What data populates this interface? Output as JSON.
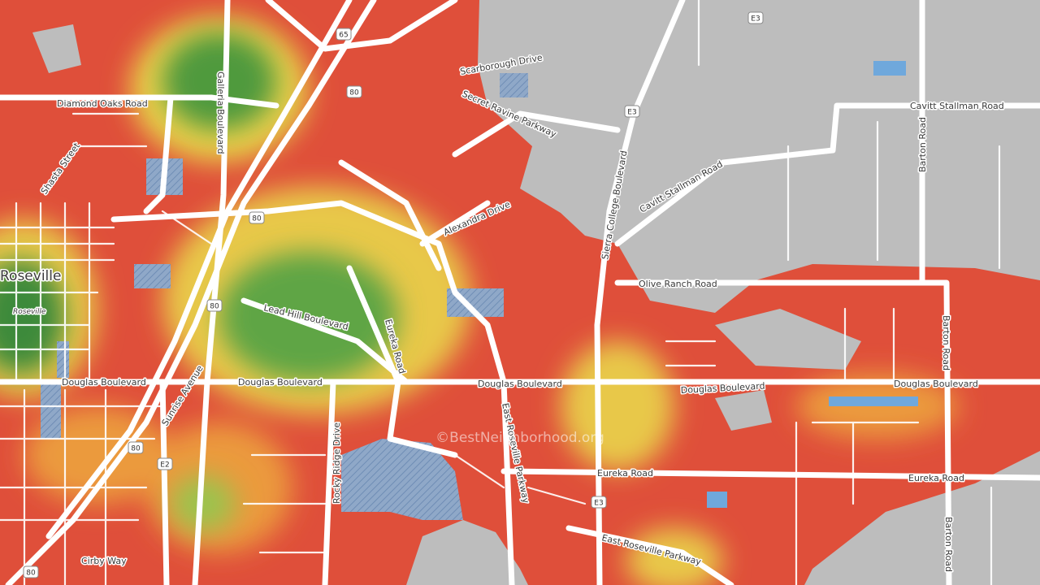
{
  "labels": {
    "roads": [
      "Diamond Oaks Road",
      "Galleria Boulevard",
      "Shasta Street",
      "Lead Hill Boulevard",
      "Eureka Road",
      "Douglas Boulevard",
      "Douglas Boulevard",
      "Douglas Boulevard",
      "Douglas Boulevard",
      "Douglas Boulevard",
      "Sunrise Avenue",
      "Rocky Ridge Drive",
      "East Roseville Parkway",
      "Eureka Road",
      "Eureka Road",
      "Cirby Way",
      "East Roseville Parkway",
      "Scarborough Drive",
      "Secret Ravine Parkway",
      "Alexandra Drive",
      "Sierra College Boulevard",
      "Cavitt Stallman Road",
      "Cavitt Stallman Road",
      "Barton Road",
      "Barton Road",
      "Barton Road",
      "Olive Ranch Road"
    ],
    "places": [
      "Roseville",
      "Roseville"
    ],
    "shields": [
      "65",
      "80",
      "80",
      "80",
      "80",
      "80",
      "E3",
      "E3",
      "E3",
      "E2"
    ],
    "watermark": "©BestNeighborhood.org"
  }
}
